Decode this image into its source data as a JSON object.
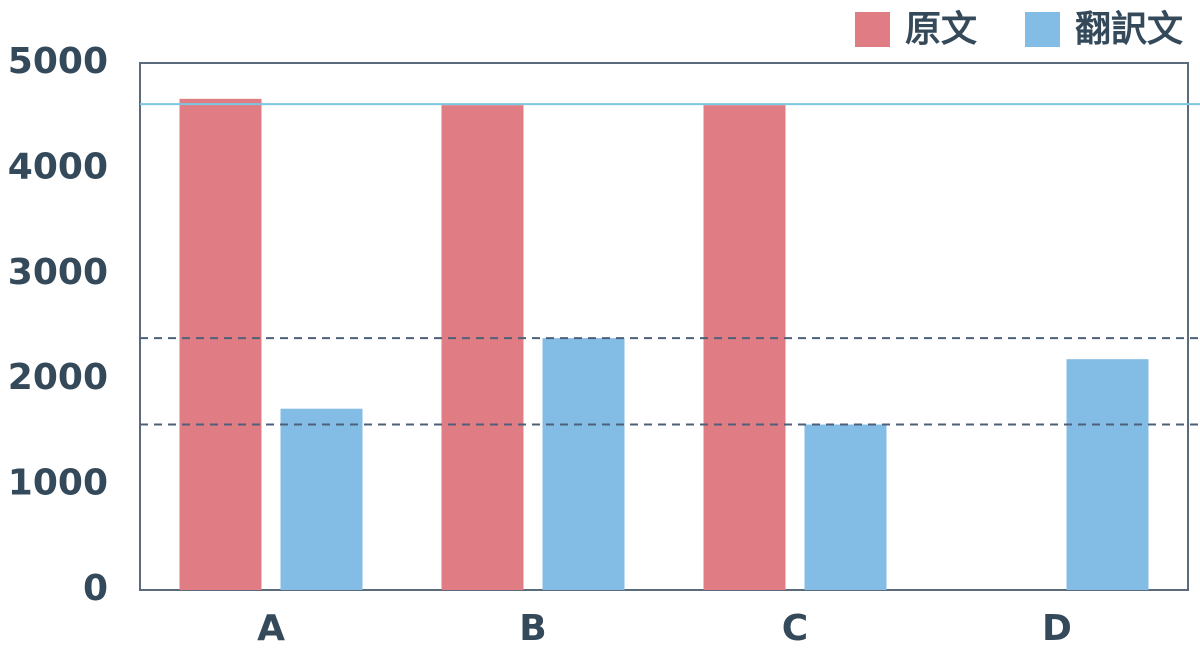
{
  "chart_data": {
    "type": "bar",
    "categories": [
      "A",
      "B",
      "C",
      "D"
    ],
    "series": [
      {
        "name": "原文",
        "color": "#e07c84",
        "values": [
          4660,
          4600,
          4600,
          null
        ]
      },
      {
        "name": "翻訳文",
        "color": "#83bde6",
        "values": [
          1720,
          2390,
          1570,
          2190
        ]
      }
    ],
    "ylim": [
      0,
      5000
    ],
    "yticks": [
      0,
      1000,
      2000,
      3000,
      4000,
      5000
    ],
    "hlines": [
      {
        "value": 4610,
        "color": "#7cc6df",
        "style": "solid"
      },
      {
        "value": 2390,
        "color": "#4e6079",
        "style": "dashed"
      },
      {
        "value": 1570,
        "color": "#4e6079",
        "style": "dashed"
      }
    ],
    "legend": "top-right"
  }
}
